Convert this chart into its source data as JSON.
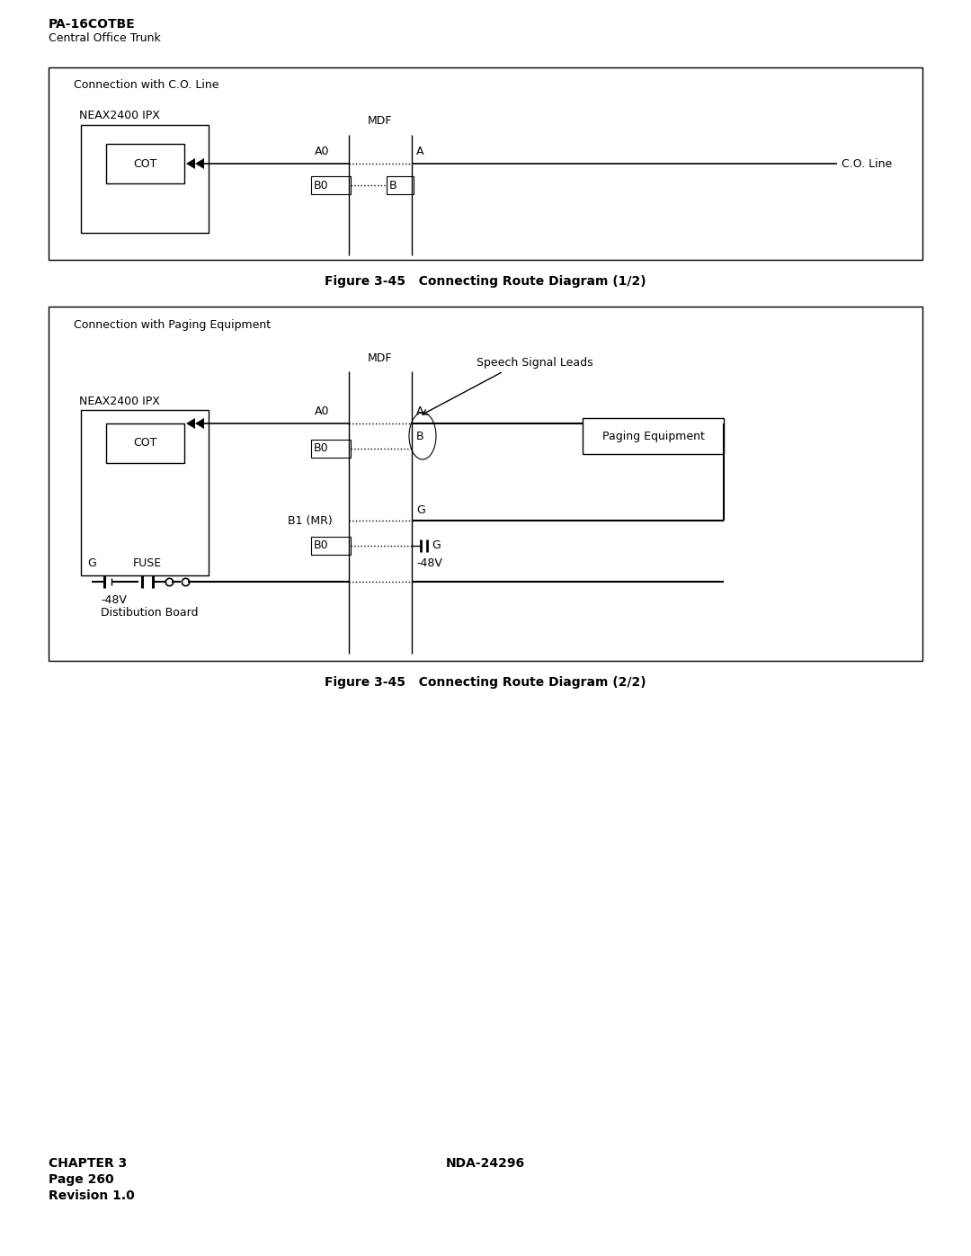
{
  "page_title_bold": "PA-16COTBE",
  "page_subtitle": "Central Office Trunk",
  "fig1_caption": "Figure 3-45   Connecting Route Diagram (1/2)",
  "fig2_caption": "Figure 3-45   Connecting Route Diagram (2/2)",
  "footer_left": "CHAPTER 3\nPage 260\nRevision 1.0",
  "footer_center": "NDA-24296",
  "bg_color": "#ffffff",
  "box_color": "#000000"
}
